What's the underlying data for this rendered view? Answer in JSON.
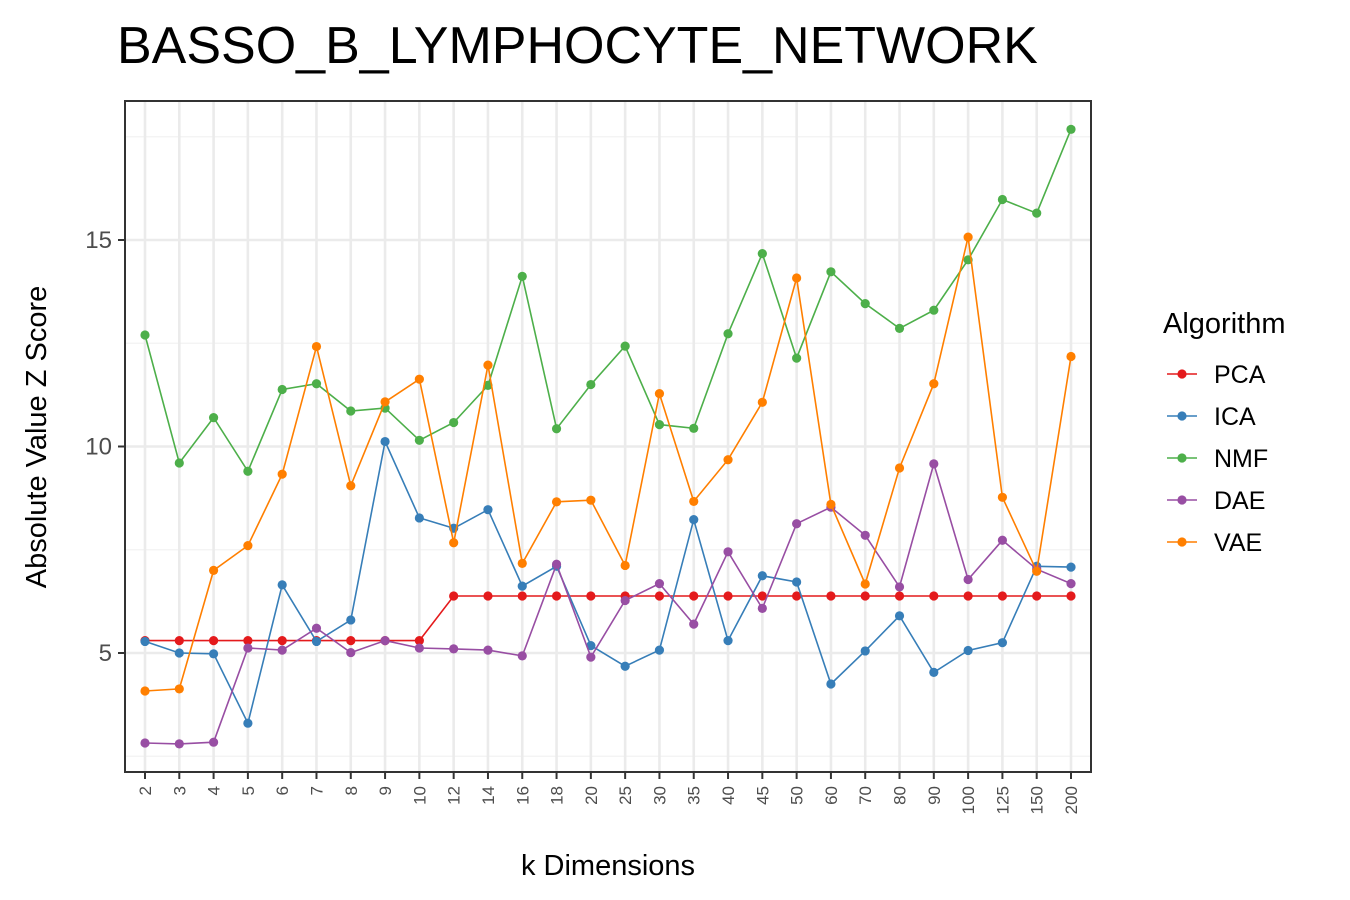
{
  "chart_data": {
    "type": "line",
    "title": "BASSO_B_LYMPHOCYTE_NETWORK",
    "xlabel": "k Dimensions",
    "ylabel": "Absolute Value Z Score",
    "categories": [
      "2",
      "3",
      "4",
      "5",
      "6",
      "7",
      "8",
      "9",
      "10",
      "12",
      "14",
      "16",
      "18",
      "20",
      "25",
      "30",
      "35",
      "40",
      "45",
      "50",
      "60",
      "70",
      "80",
      "90",
      "100",
      "125",
      "150",
      "200"
    ],
    "ylim": [
      2.1,
      18.4
    ],
    "yticks": [
      5,
      10,
      15
    ],
    "grid": true,
    "legend": {
      "title": "Algorithm",
      "position": "right"
    },
    "series": [
      {
        "name": "PCA",
        "color": "#e41a1c",
        "values": [
          5.3,
          5.3,
          5.3,
          5.3,
          5.3,
          5.3,
          5.3,
          5.3,
          5.3,
          6.38,
          6.38,
          6.38,
          6.38,
          6.38,
          6.38,
          6.38,
          6.38,
          6.38,
          6.38,
          6.38,
          6.38,
          6.38,
          6.38,
          6.38,
          6.38,
          6.38,
          6.38,
          6.38
        ]
      },
      {
        "name": "ICA",
        "color": "#377eb8",
        "values": [
          5.28,
          5.0,
          4.98,
          3.3,
          6.65,
          5.28,
          5.8,
          10.12,
          8.27,
          8.02,
          8.47,
          6.62,
          7.1,
          5.18,
          4.68,
          5.07,
          8.23,
          5.3,
          6.87,
          6.72,
          4.25,
          5.05,
          5.9,
          4.53,
          5.06,
          5.25,
          7.1,
          7.08
        ]
      },
      {
        "name": "NMF",
        "color": "#4daf4a",
        "values": [
          12.7,
          9.6,
          10.7,
          9.4,
          11.38,
          11.52,
          10.86,
          10.93,
          10.15,
          10.58,
          11.48,
          14.12,
          10.43,
          11.5,
          12.43,
          10.53,
          10.44,
          12.73,
          14.67,
          12.14,
          14.23,
          13.46,
          12.86,
          13.3,
          14.52,
          15.98,
          15.65,
          17.68
        ]
      },
      {
        "name": "DAE",
        "color": "#984ea3",
        "values": [
          2.82,
          2.8,
          2.84,
          5.12,
          5.07,
          5.6,
          5.01,
          5.3,
          5.12,
          5.1,
          5.07,
          4.93,
          7.15,
          4.9,
          6.27,
          6.68,
          5.7,
          7.45,
          6.08,
          8.13,
          8.53,
          7.85,
          6.6,
          9.58,
          6.78,
          7.73,
          7.03,
          6.68
        ]
      },
      {
        "name": "VAE",
        "color": "#ff7f00",
        "values": [
          4.08,
          4.13,
          7.0,
          7.6,
          9.33,
          12.42,
          9.05,
          11.08,
          11.63,
          7.67,
          11.97,
          7.17,
          8.66,
          8.7,
          7.12,
          11.28,
          8.67,
          9.68,
          11.07,
          14.08,
          8.6,
          6.67,
          9.48,
          11.52,
          15.07,
          8.77,
          6.98,
          12.18
        ]
      }
    ]
  }
}
